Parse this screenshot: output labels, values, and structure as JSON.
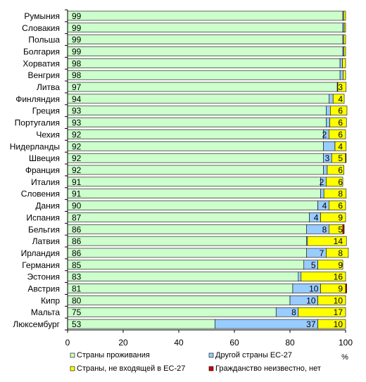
{
  "chart_data": {
    "type": "bar",
    "orientation": "horizontal",
    "stacked": true,
    "title": "",
    "xlabel": "%",
    "ylabel": "",
    "xlim": [
      0,
      100
    ],
    "xticks": [
      0,
      20,
      40,
      60,
      80,
      100
    ],
    "grid": false,
    "legend_position": "bottom",
    "categories": [
      "Румыния",
      "Словакия",
      "Польша",
      "Болгария",
      "Хорватия",
      "Венгрия",
      "Литва",
      "Финляндия",
      "Греция",
      "Португалия",
      "Чехия",
      "Нидерланды",
      "Швеция",
      "Франция",
      "Италия",
      "Словения",
      "Дания",
      "Испания",
      "Бельгия",
      "Латвия",
      "Ирландия",
      "Германия",
      "Эстония",
      "Австрия",
      "Кипр",
      "Мальта",
      "Люксембург"
    ],
    "series": [
      {
        "name": "Страны проживания",
        "color": "#ccffcc",
        "values": [
          99,
          99,
          99,
          99,
          98,
          98,
          97,
          94,
          93,
          93,
          92,
          92,
          92,
          92,
          91,
          91,
          90,
          87,
          86,
          86,
          86,
          85,
          83,
          81,
          80,
          75,
          53
        ],
        "labels": [
          "99",
          "99",
          "99",
          "99",
          "98",
          "98",
          "97",
          "94",
          "93",
          "93",
          "92",
          "92",
          "92",
          "92",
          "91",
          "91",
          "90",
          "87",
          "86",
          "86",
          "86",
          "85",
          "83",
          "81",
          "80",
          "75",
          "53"
        ]
      },
      {
        "name": "Другой страны ЕС-27",
        "color": "#99ccff",
        "values": [
          0.3,
          0.5,
          0.3,
          0.4,
          0.9,
          1.1,
          0.2,
          1.5,
          1.5,
          1.3,
          2,
          4.2,
          3,
          1.4,
          2,
          1.2,
          4,
          4,
          8,
          0.3,
          7,
          5,
          1,
          10,
          10,
          8,
          37
        ],
        "labels": [
          "",
          "",
          "",
          "",
          "",
          "",
          "",
          "",
          "",
          "",
          "2",
          "",
          "3",
          "",
          "2",
          "",
          "4",
          "4",
          "8",
          "",
          "7",
          "5",
          "",
          "10",
          "10",
          "8",
          "37"
        ]
      },
      {
        "name": "Страны, не входящей в ЕС-27",
        "color": "#ffff00",
        "values": [
          0.7,
          0.5,
          0.7,
          0.6,
          1.1,
          0.9,
          3,
          4,
          6,
          6,
          6,
          4,
          5,
          6,
          6,
          8,
          6,
          9,
          5,
          14,
          8,
          9,
          16,
          9,
          10,
          17,
          10
        ],
        "labels": [
          "",
          "",
          "",
          "",
          "",
          "",
          "3",
          "4",
          "6",
          "6",
          "6",
          "4",
          "5",
          "6",
          "6",
          "8",
          "6",
          "9",
          "5",
          "14",
          "8",
          "9",
          "16",
          "9",
          "10",
          "17",
          "10"
        ]
      },
      {
        "name": "Гражданство неизвестно, нет",
        "color": "#cc0000",
        "values": [
          0,
          0,
          0,
          0,
          0,
          0,
          0,
          0,
          0,
          0,
          0,
          0,
          0.2,
          0,
          0,
          0,
          0,
          0,
          0.5,
          0,
          0,
          0,
          0,
          0.4,
          0,
          0,
          0
        ],
        "labels": [
          "",
          "",
          "",
          "",
          "",
          "",
          "",
          "",
          "",
          "",
          "",
          "",
          "",
          "",
          "",
          "",
          "",
          "",
          "",
          "",
          "",
          "",
          "",
          "",
          "",
          "",
          ""
        ]
      }
    ]
  }
}
